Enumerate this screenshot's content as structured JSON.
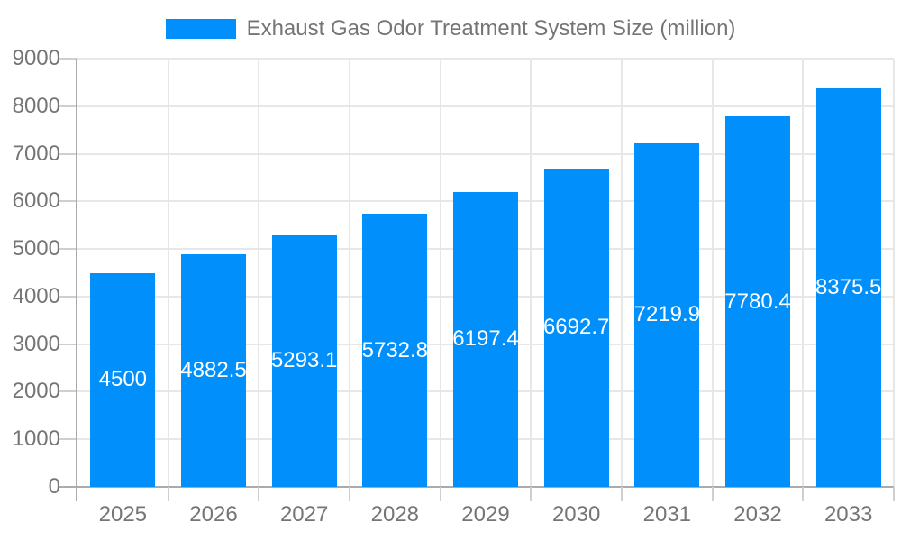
{
  "chart_data": {
    "type": "bar",
    "title": "Exhaust Gas Odor Treatment System Size (million)",
    "categories": [
      "2025",
      "2026",
      "2027",
      "2028",
      "2029",
      "2030",
      "2031",
      "2032",
      "2033"
    ],
    "values": [
      4500,
      4882.5,
      5293.1,
      5732.8,
      6197.4,
      6692.7,
      7219.9,
      7780.4,
      8375.5
    ],
    "xlabel": "",
    "ylabel": "",
    "ylim": [
      0,
      9000
    ],
    "ytick_step": 1000,
    "grid": true,
    "legend_position": "top",
    "bar_labels_inside": true,
    "colors": {
      "bar": "#008ffb",
      "bar_label": "#ffffff",
      "grid": "#e7e7e7",
      "axis": "#ababab",
      "tick": "#cfcfcf",
      "text": "#757575"
    }
  }
}
